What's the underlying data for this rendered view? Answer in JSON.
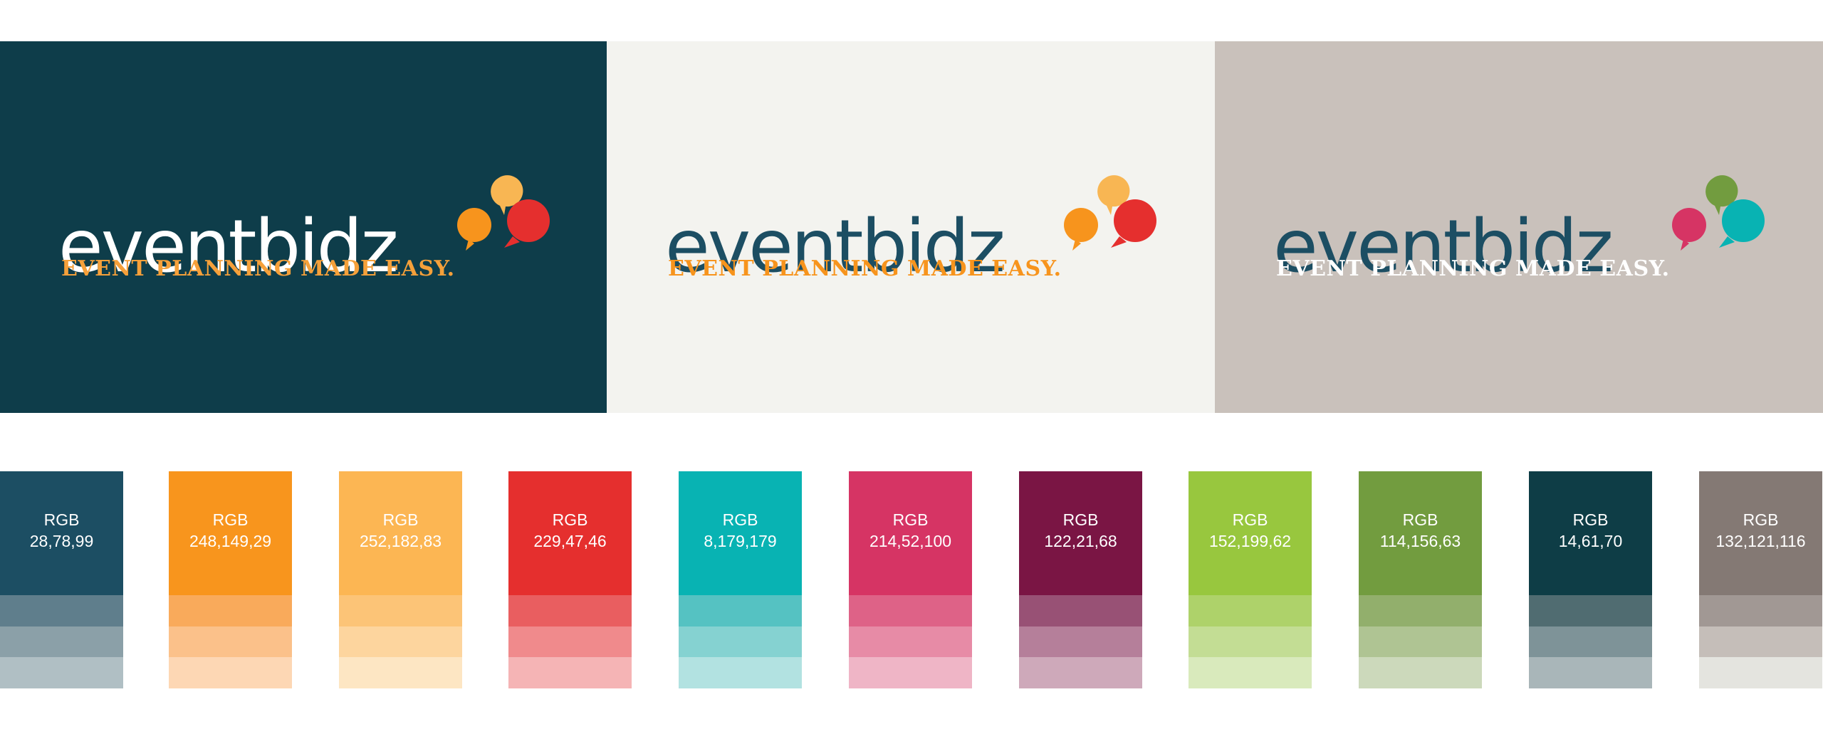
{
  "logo_panels": [
    {
      "background": "#0E3D4A",
      "wordmark": "eventbidz",
      "wordmark_color": "#FFFFFF",
      "tagline": "EVENT PLANNING MADE EASY.",
      "tagline_color": "#F5A03A",
      "bubble_colors": [
        "#F8B653",
        "#F7941D",
        "#E52F2E"
      ]
    },
    {
      "background": "#F3F3EF",
      "wordmark": "eventbidz",
      "wordmark_color": "#1C4E63",
      "tagline": "EVENT PLANNING MADE EASY.",
      "tagline_color": "#F7941D",
      "bubble_colors": [
        "#F8B653",
        "#F7941D",
        "#E52F2E"
      ]
    },
    {
      "background": "#C9C1BB",
      "wordmark": "eventbidz",
      "wordmark_color": "#1C4E63",
      "tagline": "EVENT PLANNING MADE EASY.",
      "tagline_color": "#FFFFFF",
      "bubble_colors": [
        "#729C3F",
        "#D63464",
        "#08B3B3"
      ]
    }
  ],
  "swatches": [
    {
      "label": "RGB",
      "value": "28,78,99",
      "color": "#1C4E63",
      "tints": [
        "#5F7E8C",
        "#8BA0A8",
        "#B0BFC4"
      ]
    },
    {
      "label": "RGB",
      "value": "248,149,29",
      "color": "#F8951D",
      "tints": [
        "#F9AA5B",
        "#FBC18A",
        "#FDD7B4"
      ]
    },
    {
      "label": "RGB",
      "value": "252,182,83",
      "color": "#FCB653",
      "tints": [
        "#FCC477",
        "#FDD59E",
        "#FDE6C3"
      ]
    },
    {
      "label": "RGB",
      "value": "229,47,46",
      "color": "#E52F2E",
      "tints": [
        "#E95E60",
        "#F08A8C",
        "#F5B4B5"
      ]
    },
    {
      "label": "RGB",
      "value": "8,179,179",
      "color": "#08B3B3",
      "tints": [
        "#55C2C2",
        "#85D2D1",
        "#B2E2E1"
      ]
    },
    {
      "label": "RGB",
      "value": "214,52,100",
      "color": "#D63464",
      "tints": [
        "#DE6287",
        "#E78BA6",
        "#EFB5C6"
      ]
    },
    {
      "label": "RGB",
      "value": "122,21,68",
      "color": "#7A1544",
      "tints": [
        "#985175",
        "#B57F9A",
        "#CEA9BA"
      ]
    },
    {
      "label": "RGB",
      "value": "152,199,62",
      "color": "#98C73E",
      "tints": [
        "#AED26A",
        "#C3DD94",
        "#D9EABC"
      ]
    },
    {
      "label": "RGB",
      "value": "114,156,63",
      "color": "#729C3F",
      "tints": [
        "#92AF6C",
        "#AFC493",
        "#CCD9BB"
      ]
    },
    {
      "label": "RGB",
      "value": "14,61,70",
      "color": "#0E3D46",
      "tints": [
        "#506C71",
        "#7E9398",
        "#A9B6B9"
      ]
    },
    {
      "label": "RGB",
      "value": "132,121,116",
      "color": "#847974",
      "tints": [
        "#A19894",
        "#C5BEB9",
        "#E4E4DF"
      ]
    }
  ]
}
